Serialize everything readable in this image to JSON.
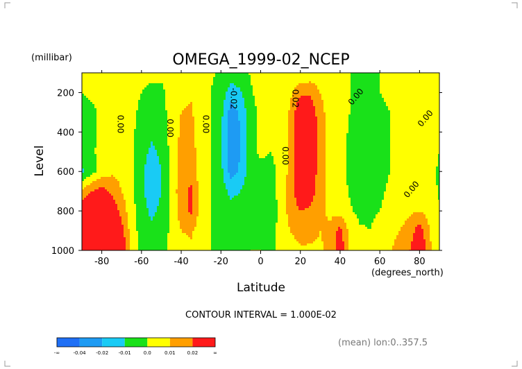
{
  "chart_data": {
    "type": "heatmap",
    "title": "OMEGA_1999-02_NCEP",
    "xlabel": "Latitude",
    "ylabel": "Level",
    "x_units": "(degrees_north)",
    "y_units": "(millibar)",
    "xlim": [
      -90,
      90
    ],
    "ylim": [
      1000,
      100
    ],
    "x_ticks": [
      -80,
      -60,
      -40,
      -20,
      0,
      20,
      40,
      60,
      80
    ],
    "x_tick_labels": [
      "-80",
      "-60",
      "-40",
      "-20",
      "0",
      "20",
      "40",
      "60",
      "80"
    ],
    "y_ticks": [
      200,
      400,
      600,
      800,
      1000
    ],
    "y_tick_labels": [
      "200",
      "400",
      "600",
      "800",
      "1000"
    ],
    "contour_interval_text": "CONTOUR INTERVAL = 1.000E-02",
    "contour_labels": [
      {
        "text": "0.00",
        "lat": -72,
        "level": 360
      },
      {
        "text": "0.00",
        "lat": -47,
        "level": 380
      },
      {
        "text": "0.00",
        "lat": -29,
        "level": 360
      },
      {
        "text": "-0.02",
        "lat": -15,
        "level": 230
      },
      {
        "text": "0.00",
        "lat": 11,
        "level": 520
      },
      {
        "text": "0.02",
        "lat": 16,
        "level": 230
      },
      {
        "text": "0.00",
        "lat": 49,
        "level": 230
      },
      {
        "text": "0.00",
        "lat": 84,
        "level": 340
      },
      {
        "text": "0.00",
        "lat": 77,
        "level": 700
      }
    ],
    "colorbar": {
      "colors": [
        "#1f6ff5",
        "#1e9bf3",
        "#19cbf5",
        "#19e119",
        "#ffff00",
        "#ff9f00",
        "#ff1a1a"
      ],
      "labels": [
        "-∞",
        "-0.04",
        "-0.02",
        "-0.01",
        "0.0",
        "0.01",
        "0.02",
        "∞"
      ]
    },
    "footer_text": "(mean) lon:0..357.5",
    "field": {
      "lats": [
        -90,
        -85,
        -80,
        -75,
        -70,
        -65,
        -60,
        -55,
        -50,
        -45,
        -40,
        -35,
        -30,
        -25,
        -20,
        -15,
        -10,
        -5,
        0,
        5,
        10,
        15,
        20,
        25,
        30,
        35,
        40,
        45,
        50,
        55,
        60,
        65,
        70,
        75,
        80,
        85,
        90
      ],
      "levels": [
        100,
        200,
        300,
        400,
        500,
        600,
        700,
        800,
        900,
        1000
      ],
      "values": [
        [
          0.001,
          0.001,
          0.002,
          0.004,
          0.004,
          0.002,
          0.001,
          0.001,
          0.001,
          0.002,
          0.004,
          0.005,
          0.003,
          0.001,
          -0.001,
          -0.005,
          -0.004,
          0.001,
          0.003,
          0.002,
          0.001,
          0.001,
          0.002,
          0.003,
          0.004,
          0.002,
          0.001,
          0.0,
          -0.001,
          -0.001,
          0.0,
          0.001,
          0.002,
          0.003,
          0.004,
          0.004,
          0.003
        ],
        [
          0.0,
          0.001,
          0.002,
          0.006,
          0.006,
          0.003,
          0.0,
          -0.001,
          -0.001,
          0.002,
          0.008,
          0.009,
          0.004,
          0.0,
          -0.004,
          -0.015,
          -0.011,
          -0.001,
          0.003,
          0.002,
          0.0,
          0.008,
          0.018,
          0.018,
          0.01,
          0.004,
          0.002,
          0.0,
          -0.001,
          -0.001,
          0.0,
          0.001,
          0.002,
          0.003,
          0.005,
          0.005,
          0.003
        ],
        [
          -0.002,
          -0.001,
          0.001,
          0.006,
          0.006,
          0.002,
          -0.002,
          -0.005,
          -0.003,
          0.003,
          0.01,
          0.011,
          0.005,
          0.0,
          -0.007,
          -0.025,
          -0.018,
          -0.003,
          0.002,
          0.001,
          0.0,
          0.012,
          0.03,
          0.028,
          0.014,
          0.005,
          0.002,
          0.0,
          -0.002,
          -0.002,
          -0.001,
          0.0,
          0.002,
          0.003,
          0.005,
          0.006,
          0.003
        ],
        [
          -0.003,
          -0.001,
          0.001,
          0.005,
          0.005,
          0.002,
          -0.004,
          -0.008,
          -0.005,
          0.003,
          0.012,
          0.013,
          0.005,
          0.0,
          -0.008,
          -0.027,
          -0.02,
          -0.003,
          0.002,
          0.0,
          0.001,
          0.013,
          0.032,
          0.03,
          0.015,
          0.006,
          0.003,
          -0.001,
          -0.004,
          -0.003,
          -0.001,
          0.0,
          0.002,
          0.003,
          0.004,
          0.006,
          0.002
        ],
        [
          -0.003,
          -0.001,
          0.002,
          0.006,
          0.006,
          0.002,
          -0.006,
          -0.012,
          -0.008,
          0.003,
          0.013,
          0.014,
          0.005,
          0.0,
          -0.008,
          -0.027,
          -0.02,
          -0.003,
          0.002,
          0.0,
          0.002,
          0.014,
          0.032,
          0.03,
          0.015,
          0.006,
          0.003,
          -0.002,
          -0.008,
          -0.006,
          -0.002,
          0.0,
          0.002,
          0.003,
          0.004,
          0.005,
          0.0
        ],
        [
          -0.012,
          -0.003,
          0.004,
          0.008,
          0.007,
          0.002,
          -0.008,
          -0.015,
          -0.01,
          0.003,
          0.015,
          0.016,
          0.005,
          0.0,
          -0.007,
          -0.025,
          -0.018,
          -0.003,
          -0.004,
          -0.002,
          0.002,
          0.014,
          0.03,
          0.028,
          0.015,
          0.007,
          0.003,
          -0.002,
          -0.009,
          -0.007,
          -0.002,
          0.0,
          0.002,
          0.003,
          0.004,
          0.004,
          -0.002
        ],
        [
          0.012,
          0.02,
          0.024,
          0.018,
          0.01,
          0.003,
          -0.008,
          -0.015,
          -0.01,
          0.003,
          0.016,
          0.022,
          0.005,
          0.0,
          -0.005,
          -0.013,
          -0.01,
          -0.002,
          -0.005,
          -0.003,
          0.003,
          0.015,
          0.028,
          0.026,
          0.014,
          0.007,
          0.004,
          -0.001,
          -0.006,
          -0.004,
          -0.001,
          0.001,
          0.004,
          0.003,
          0.004,
          0.004,
          -0.001
        ],
        [
          0.03,
          0.04,
          0.038,
          0.028,
          0.016,
          0.004,
          -0.006,
          -0.012,
          -0.008,
          0.003,
          0.015,
          0.022,
          0.005,
          0.0,
          -0.003,
          -0.006,
          -0.004,
          -0.001,
          -0.003,
          -0.008,
          0.004,
          0.014,
          0.02,
          0.018,
          0.012,
          0.008,
          0.006,
          0.001,
          -0.002,
          -0.001,
          0.0,
          0.002,
          0.006,
          0.008,
          0.01,
          0.006,
          0.001
        ],
        [
          0.05,
          0.056,
          0.052,
          0.04,
          0.024,
          0.005,
          -0.004,
          -0.008,
          -0.005,
          0.002,
          0.01,
          0.012,
          0.004,
          0.0,
          -0.002,
          -0.003,
          -0.002,
          0.0,
          -0.001,
          -0.005,
          0.004,
          0.01,
          0.013,
          0.012,
          0.01,
          0.012,
          0.024,
          0.006,
          0.001,
          0.0,
          0.002,
          0.005,
          0.01,
          0.014,
          0.026,
          0.01,
          0.002
        ],
        [
          0.06,
          0.066,
          0.06,
          0.048,
          0.03,
          0.006,
          -0.002,
          -0.004,
          -0.002,
          0.002,
          0.006,
          0.007,
          0.003,
          0.0,
          -0.001,
          -0.002,
          -0.001,
          0.0,
          0.0,
          -0.002,
          0.003,
          0.007,
          0.009,
          0.009,
          0.009,
          0.012,
          0.028,
          0.008,
          0.002,
          0.001,
          0.004,
          0.008,
          0.016,
          0.02,
          0.032,
          0.012,
          0.002
        ]
      ]
    }
  }
}
